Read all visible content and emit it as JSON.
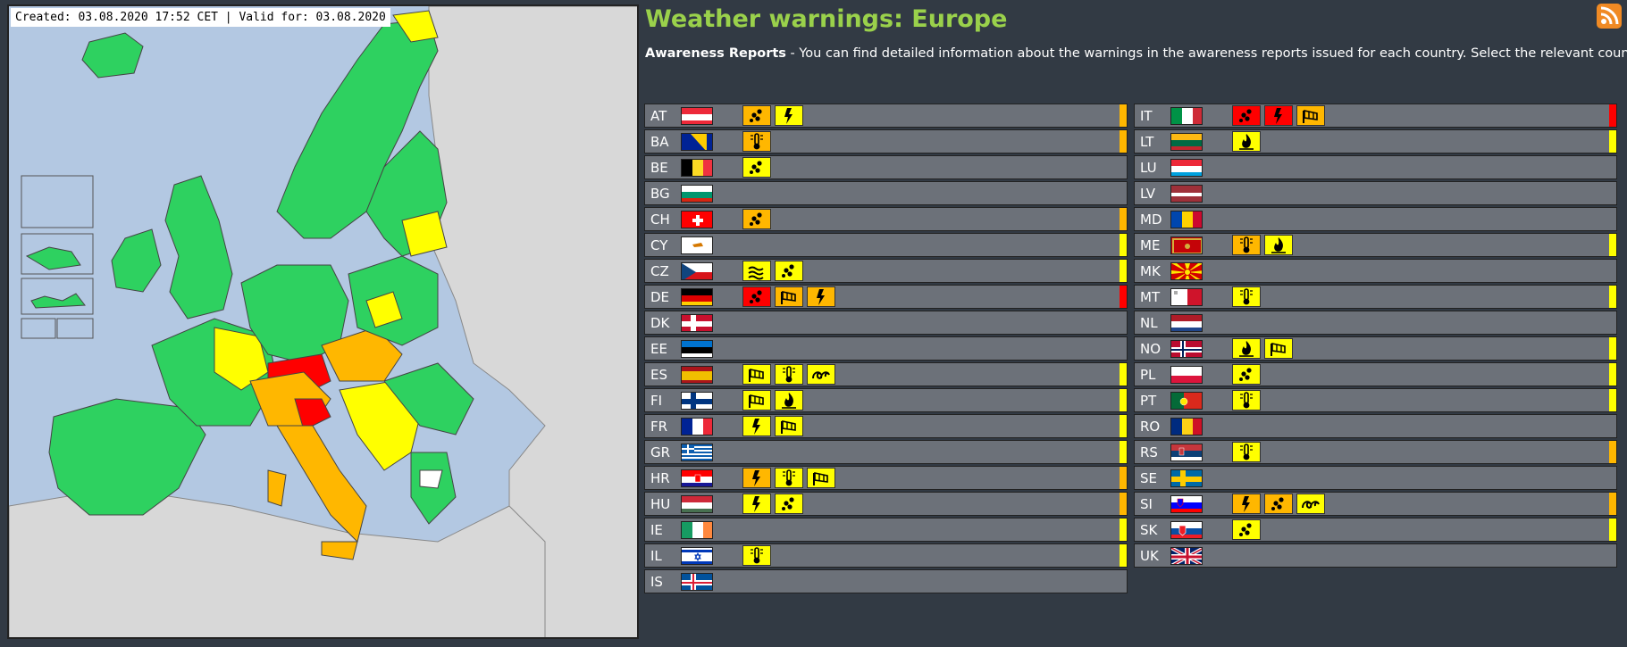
{
  "map": {
    "created_text": "Created: 03.08.2020 17:52 CET | Valid for: 03.08.2020"
  },
  "header": {
    "title": "Weather warnings: Europe",
    "intro_bold": "Awareness Reports",
    "intro_rest": " - You can find detailed information about the warnings in the awareness reports issued for each country. Select the relevant country."
  },
  "colors": {
    "yellow": "#ffff00",
    "orange": "#ffb700",
    "red": "#ff0000",
    "title_green": "#9ad14b",
    "row_gray": "#6c7179"
  },
  "countries_left": [
    {
      "code": "AT",
      "level": "orange",
      "warnings": [
        {
          "type": "rain",
          "level": "orange"
        },
        {
          "type": "thunderstorm",
          "level": "yellow"
        }
      ]
    },
    {
      "code": "BA",
      "level": "orange",
      "warnings": [
        {
          "type": "high-temperature",
          "level": "orange"
        }
      ]
    },
    {
      "code": "BE",
      "level": "",
      "warnings": [
        {
          "type": "rain",
          "level": "yellow"
        }
      ]
    },
    {
      "code": "BG",
      "level": "",
      "warnings": []
    },
    {
      "code": "CH",
      "level": "orange",
      "warnings": [
        {
          "type": "rain",
          "level": "orange"
        }
      ]
    },
    {
      "code": "CY",
      "level": "yellow",
      "warnings": []
    },
    {
      "code": "CZ",
      "level": "yellow",
      "warnings": [
        {
          "type": "flooding",
          "level": "yellow"
        },
        {
          "type": "rain",
          "level": "yellow"
        }
      ]
    },
    {
      "code": "DE",
      "level": "red",
      "warnings": [
        {
          "type": "rain",
          "level": "red"
        },
        {
          "type": "wind",
          "level": "orange"
        },
        {
          "type": "thunderstorm",
          "level": "orange"
        }
      ]
    },
    {
      "code": "DK",
      "level": "",
      "warnings": []
    },
    {
      "code": "EE",
      "level": "",
      "warnings": []
    },
    {
      "code": "ES",
      "level": "yellow",
      "warnings": [
        {
          "type": "wind",
          "level": "yellow"
        },
        {
          "type": "high-temperature",
          "level": "yellow"
        },
        {
          "type": "coastal-event",
          "level": "yellow"
        }
      ]
    },
    {
      "code": "FI",
      "level": "yellow",
      "warnings": [
        {
          "type": "wind",
          "level": "yellow"
        },
        {
          "type": "forest-fire",
          "level": "yellow"
        }
      ]
    },
    {
      "code": "FR",
      "level": "yellow",
      "warnings": [
        {
          "type": "thunderstorm",
          "level": "yellow"
        },
        {
          "type": "wind",
          "level": "yellow"
        }
      ]
    },
    {
      "code": "GR",
      "level": "yellow",
      "warnings": []
    },
    {
      "code": "HR",
      "level": "orange",
      "warnings": [
        {
          "type": "thunderstorm",
          "level": "orange"
        },
        {
          "type": "high-temperature",
          "level": "yellow"
        },
        {
          "type": "wind",
          "level": "yellow"
        }
      ]
    },
    {
      "code": "HU",
      "level": "orange",
      "warnings": [
        {
          "type": "thunderstorm",
          "level": "yellow"
        },
        {
          "type": "rain",
          "level": "yellow"
        }
      ]
    },
    {
      "code": "IE",
      "level": "yellow",
      "warnings": []
    },
    {
      "code": "IL",
      "level": "yellow",
      "warnings": [
        {
          "type": "high-temperature",
          "level": "yellow"
        }
      ]
    },
    {
      "code": "IS",
      "level": "",
      "warnings": []
    }
  ],
  "countries_right": [
    {
      "code": "IT",
      "level": "red",
      "warnings": [
        {
          "type": "rain",
          "level": "red"
        },
        {
          "type": "thunderstorm",
          "level": "red"
        },
        {
          "type": "wind",
          "level": "orange"
        }
      ]
    },
    {
      "code": "LT",
      "level": "yellow",
      "warnings": [
        {
          "type": "forest-fire",
          "level": "yellow"
        }
      ]
    },
    {
      "code": "LU",
      "level": "",
      "warnings": []
    },
    {
      "code": "LV",
      "level": "",
      "warnings": []
    },
    {
      "code": "MD",
      "level": "",
      "warnings": []
    },
    {
      "code": "ME",
      "level": "yellow",
      "warnings": [
        {
          "type": "high-temperature",
          "level": "orange"
        },
        {
          "type": "forest-fire",
          "level": "yellow"
        }
      ]
    },
    {
      "code": "MK",
      "level": "",
      "warnings": []
    },
    {
      "code": "MT",
      "level": "yellow",
      "warnings": [
        {
          "type": "high-temperature",
          "level": "yellow"
        }
      ]
    },
    {
      "code": "NL",
      "level": "",
      "warnings": []
    },
    {
      "code": "NO",
      "level": "yellow",
      "warnings": [
        {
          "type": "forest-fire",
          "level": "yellow"
        },
        {
          "type": "wind",
          "level": "yellow"
        }
      ]
    },
    {
      "code": "PL",
      "level": "yellow",
      "warnings": [
        {
          "type": "rain",
          "level": "yellow"
        }
      ]
    },
    {
      "code": "PT",
      "level": "yellow",
      "warnings": [
        {
          "type": "high-temperature",
          "level": "yellow"
        }
      ]
    },
    {
      "code": "RO",
      "level": "",
      "warnings": []
    },
    {
      "code": "RS",
      "level": "orange",
      "warnings": [
        {
          "type": "high-temperature",
          "level": "yellow"
        }
      ]
    },
    {
      "code": "SE",
      "level": "",
      "warnings": []
    },
    {
      "code": "SI",
      "level": "orange",
      "warnings": [
        {
          "type": "thunderstorm",
          "level": "orange"
        },
        {
          "type": "rain",
          "level": "orange"
        },
        {
          "type": "coastal-event",
          "level": "yellow"
        }
      ]
    },
    {
      "code": "SK",
      "level": "yellow",
      "warnings": [
        {
          "type": "rain",
          "level": "yellow"
        }
      ]
    },
    {
      "code": "UK",
      "level": "",
      "warnings": []
    }
  ]
}
